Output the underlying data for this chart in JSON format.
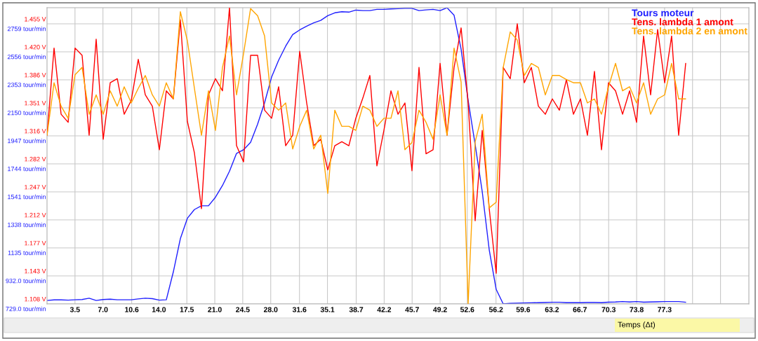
{
  "chart_data": {
    "type": "line",
    "xlabel": "Temps (Δt)",
    "legend": "top right",
    "grid": true,
    "marker": "none",
    "line_style": "solid",
    "x": [
      0,
      0.88,
      1.76,
      2.64,
      3.51,
      4.39,
      5.27,
      6.15,
      7.03,
      7.91,
      8.79,
      9.66,
      10.54,
      11.42,
      12.3,
      13.18,
      14.06,
      14.93,
      15.81,
      16.69,
      17.57,
      18.45,
      19.33,
      20.21,
      21.08,
      21.96,
      22.84,
      23.72,
      24.6,
      25.48,
      26.36,
      27.23,
      28.11,
      28.99,
      29.87,
      30.75,
      31.63,
      32.5,
      33.38,
      34.26,
      35.14,
      36.02,
      36.9,
      37.78,
      38.65,
      39.53,
      40.41,
      41.29,
      42.17,
      43.05,
      43.93,
      44.8,
      45.68,
      46.56,
      47.44,
      48.32,
      49.2,
      50.07,
      50.95,
      51.83,
      52.71,
      53.59,
      54.47,
      55.35,
      56.22,
      57.1,
      57.98,
      58.86,
      59.74,
      60.62,
      61.5,
      62.37,
      63.25,
      64.13,
      65.01,
      65.89,
      66.77,
      67.64,
      68.52,
      69.4,
      70.28,
      71.16,
      72.04,
      72.92,
      73.79,
      74.67,
      75.55,
      76.43,
      77.31,
      78.18,
      79.06,
      79.94
    ],
    "xlim": [
      0,
      87.85
    ],
    "xticks": [
      {
        "value": 3.5,
        "label": "3.5"
      },
      {
        "value": 7.0,
        "label": "7.0"
      },
      {
        "value": 10.6,
        "label": "10.6"
      },
      {
        "value": 14.0,
        "label": "14.0"
      },
      {
        "value": 17.5,
        "label": "17.5"
      },
      {
        "value": 21.0,
        "label": "21.0"
      },
      {
        "value": 24.5,
        "label": "24.5"
      },
      {
        "value": 28.0,
        "label": "28.0"
      },
      {
        "value": 31.6,
        "label": "31.6"
      },
      {
        "value": 35.1,
        "label": "35.1"
      },
      {
        "value": 38.7,
        "label": "38.7"
      },
      {
        "value": 42.2,
        "label": "42.2"
      },
      {
        "value": 45.7,
        "label": "45.7"
      },
      {
        "value": 49.2,
        "label": "49.2"
      },
      {
        "value": 52.6,
        "label": "52.6"
      },
      {
        "value": 56.2,
        "label": "56.2"
      },
      {
        "value": 59.6,
        "label": "59.6"
      },
      {
        "value": 63.2,
        "label": "63.2"
      },
      {
        "value": 66.7,
        "label": "66.7"
      },
      {
        "value": 70.3,
        "label": "70.3"
      },
      {
        "value": 73.8,
        "label": "73.8"
      },
      {
        "value": 77.3,
        "label": "77.3"
      },
      {
        "value": 80.8,
        "label": null
      },
      {
        "value": 84.3,
        "label": null
      }
    ],
    "ylim": [
      729,
      2876
    ],
    "yticks": [
      {
        "value": 729,
        "label": "729.0 tour/min"
      },
      {
        "value": 932,
        "label": "932.0 tour/min"
      },
      {
        "value": 1135,
        "label": "1135 tour/min"
      },
      {
        "value": 1338,
        "label": "1338 tour/min"
      },
      {
        "value": 1541,
        "label": "1541 tour/min"
      },
      {
        "value": 1744,
        "label": "1744 tour/min"
      },
      {
        "value": 1947,
        "label": "1947 tour/min"
      },
      {
        "value": 2150,
        "label": "2150 tour/min"
      },
      {
        "value": 2353,
        "label": "2353 tour/min"
      },
      {
        "value": 2556,
        "label": "2556 tour/min"
      },
      {
        "value": 2759,
        "label": "2759 tour/min"
      }
    ],
    "y2lim": [
      1.108,
      1.475
    ],
    "y2ticks": [
      {
        "value": 1.108,
        "label": "1.108 V"
      },
      {
        "value": 1.1427,
        "label": "1.143 V"
      },
      {
        "value": 1.1774,
        "label": "1.177 V"
      },
      {
        "value": 1.2121,
        "label": "1.212 V"
      },
      {
        "value": 1.2468,
        "label": "1.247 V"
      },
      {
        "value": 1.2815,
        "label": "1.282 V"
      },
      {
        "value": 1.3162,
        "label": "1.316 V"
      },
      {
        "value": 1.3509,
        "label": "1.351 V"
      },
      {
        "value": 1.3856,
        "label": "1.386 V"
      },
      {
        "value": 1.4203,
        "label": "1.420 V"
      },
      {
        "value": 1.455,
        "label": "1.455 V"
      }
    ],
    "series": [
      {
        "name": "Tours moteur",
        "color": "#1f1fff",
        "values": [
          754,
          758,
          758,
          756,
          759,
          761,
          770,
          754,
          761,
          763,
          759,
          759,
          759,
          765,
          770,
          767,
          756,
          759,
          961,
          1202,
          1350,
          1413,
          1440,
          1440,
          1502,
          1587,
          1691,
          1820,
          1846,
          1900,
          2032,
          2187,
          2373,
          2495,
          2597,
          2681,
          2715,
          2742,
          2766,
          2784,
          2818,
          2839,
          2847,
          2844,
          2859,
          2855,
          2855,
          2864,
          2864,
          2867,
          2869,
          2872,
          2872,
          2855,
          2860,
          2864,
          2855,
          2876,
          2821,
          2576,
          2204,
          1883,
          1545,
          1121,
          834,
          729,
          733,
          734,
          736,
          737,
          738,
          739,
          741,
          741,
          738,
          738,
          738,
          739,
          739,
          738,
          742,
          743,
          746,
          743,
          746,
          742,
          743,
          744,
          746,
          746,
          746,
          741
        ]
      },
      {
        "name": "Tens. lambda 1 amont",
        "color": "#ff0000",
        "axis": "y2",
        "values": [
          1.317,
          1.425,
          1.343,
          1.333,
          1.425,
          1.416,
          1.317,
          1.436,
          1.312,
          1.382,
          1.387,
          1.343,
          1.36,
          1.411,
          1.367,
          1.353,
          1.299,
          1.372,
          1.362,
          1.46,
          1.334,
          1.295,
          1.226,
          1.367,
          1.387,
          1.372,
          1.475,
          1.304,
          1.284,
          1.416,
          1.416,
          1.348,
          1.338,
          1.377,
          1.304,
          1.317,
          1.421,
          1.357,
          1.304,
          1.312,
          1.274,
          1.304,
          1.309,
          1.304,
          1.338,
          1.363,
          1.391,
          1.279,
          1.323,
          1.372,
          1.343,
          1.357,
          1.273,
          1.401,
          1.294,
          1.299,
          1.406,
          1.317,
          1.401,
          1.45,
          1.357,
          1.211,
          1.323,
          1.226,
          1.146,
          1.401,
          1.387,
          1.455,
          1.382,
          1.401,
          1.353,
          1.343,
          1.362,
          1.348,
          1.386,
          1.343,
          1.362,
          1.317,
          1.396,
          1.299,
          1.382,
          1.372,
          1.343,
          1.372,
          1.333,
          1.44,
          1.367,
          1.448,
          1.382,
          1.44,
          1.317,
          1.406
        ]
      },
      {
        "name": "Tens. lambda 2 en amont",
        "color": "#ffa500",
        "axis": "y2",
        "values": [
          1.317,
          1.382,
          1.353,
          1.338,
          1.392,
          1.401,
          1.343,
          1.367,
          1.343,
          1.372,
          1.353,
          1.377,
          1.357,
          1.375,
          1.391,
          1.367,
          1.353,
          1.382,
          1.362,
          1.47,
          1.434,
          1.375,
          1.317,
          1.372,
          1.323,
          1.401,
          1.44,
          1.367,
          1.418,
          1.474,
          1.465,
          1.44,
          1.357,
          1.348,
          1.357,
          1.3,
          1.328,
          1.348,
          1.3,
          1.317,
          1.245,
          1.348,
          1.328,
          1.328,
          1.323,
          1.353,
          1.348,
          1.328,
          1.338,
          1.338,
          1.372,
          1.299,
          1.308,
          1.348,
          1.333,
          1.312,
          1.367,
          1.317,
          1.425,
          1.383,
          1.108,
          1.309,
          1.343,
          1.227,
          1.234,
          1.401,
          1.445,
          1.435,
          1.391,
          1.406,
          1.401,
          1.367,
          1.391,
          1.391,
          1.386,
          1.382,
          1.382,
          1.357,
          1.362,
          1.343,
          1.377,
          1.406,
          1.372,
          1.377,
          1.357,
          1.382,
          1.343,
          1.362,
          1.367,
          1.406,
          1.362,
          1.362
        ]
      }
    ]
  }
}
